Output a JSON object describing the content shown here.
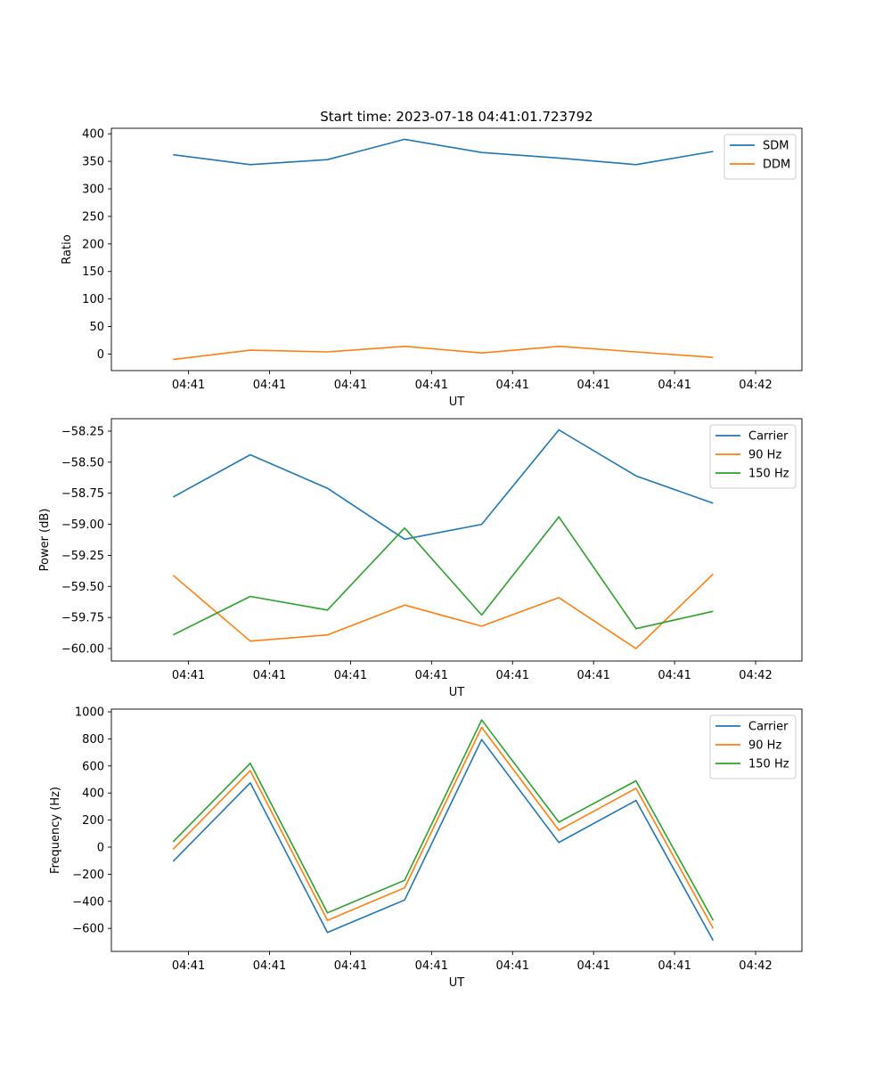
{
  "figure": {
    "title": "Start time: 2023-07-18 04:41:01.723792"
  },
  "chart_data": [
    {
      "type": "line",
      "title": "Start time: 2023-07-18 04:41:01.723792",
      "xlabel": "UT",
      "ylabel": "Ratio",
      "x_tick_labels": [
        "04:41",
        "04:41",
        "04:41",
        "04:41",
        "04:41",
        "04:41",
        "04:41"
      ],
      "x_last_tick_label": "04:42",
      "y_ticks": [
        0,
        50,
        100,
        150,
        200,
        250,
        300,
        350,
        400
      ],
      "y_tick_labels": [
        "0",
        "50",
        "100",
        "150",
        "200",
        "250",
        "300",
        "350",
        "400"
      ],
      "ylim": [
        -30,
        410
      ],
      "x": [
        1,
        2,
        3,
        4,
        5,
        6,
        7,
        8
      ],
      "xlim": [
        0.2,
        9.15
      ],
      "legend_position": "top-right",
      "series": [
        {
          "name": "SDM",
          "color": "#1f77b4",
          "values": [
            362,
            344,
            353,
            390,
            366,
            356,
            344,
            368
          ]
        },
        {
          "name": "DDM",
          "color": "#ff7f0e",
          "values": [
            -10,
            7,
            4,
            14,
            2,
            14,
            4,
            -6
          ]
        }
      ]
    },
    {
      "type": "line",
      "xlabel": "UT",
      "ylabel": "Power (dB)",
      "x_tick_labels": [
        "04:41",
        "04:41",
        "04:41",
        "04:41",
        "04:41",
        "04:41",
        "04:41"
      ],
      "x_last_tick_label": "04:42",
      "y_ticks": [
        -60.0,
        -59.75,
        -59.5,
        -59.25,
        -59.0,
        -58.75,
        -58.5,
        -58.25
      ],
      "y_tick_labels": [
        "−60.00",
        "−59.75",
        "−59.50",
        "−59.25",
        "−59.00",
        "−58.75",
        "−58.50",
        "−58.25"
      ],
      "ylim": [
        -60.1,
        -58.15
      ],
      "x": [
        1,
        2,
        3,
        4,
        5,
        6,
        7,
        8
      ],
      "xlim": [
        0.2,
        9.15
      ],
      "legend_position": "top-right",
      "series": [
        {
          "name": "Carrier",
          "color": "#1f77b4",
          "values": [
            -58.78,
            -58.44,
            -58.71,
            -59.12,
            -59.0,
            -58.24,
            -58.61,
            -58.83
          ]
        },
        {
          "name": "90 Hz",
          "color": "#ff7f0e",
          "values": [
            -59.41,
            -59.94,
            -59.89,
            -59.65,
            -59.82,
            -59.59,
            -60.0,
            -59.4
          ]
        },
        {
          "name": "150 Hz",
          "color": "#2ca02c",
          "values": [
            -59.89,
            -59.58,
            -59.69,
            -59.03,
            -59.73,
            -58.94,
            -59.84,
            -59.7
          ]
        }
      ]
    },
    {
      "type": "line",
      "xlabel": "UT",
      "ylabel": "Frequency (Hz)",
      "x_tick_labels": [
        "04:41",
        "04:41",
        "04:41",
        "04:41",
        "04:41",
        "04:41",
        "04:41"
      ],
      "x_last_tick_label": "04:42",
      "y_ticks": [
        -600,
        -400,
        -200,
        0,
        200,
        400,
        600,
        800,
        1000
      ],
      "y_tick_labels": [
        "−600",
        "−400",
        "−200",
        "0",
        "200",
        "400",
        "600",
        "800",
        "1000"
      ],
      "ylim": [
        -770,
        1020
      ],
      "x": [
        1,
        2,
        3,
        4,
        5,
        6,
        7,
        8
      ],
      "xlim": [
        0.2,
        9.15
      ],
      "legend_position": "top-right",
      "series": [
        {
          "name": "Carrier",
          "color": "#1f77b4",
          "values": [
            -105,
            475,
            -630,
            -390,
            795,
            35,
            345,
            -690
          ]
        },
        {
          "name": "90 Hz",
          "color": "#ff7f0e",
          "values": [
            -15,
            565,
            -540,
            -300,
            885,
            125,
            435,
            -600
          ]
        },
        {
          "name": "150 Hz",
          "color": "#2ca02c",
          "values": [
            40,
            620,
            -485,
            -245,
            940,
            185,
            490,
            -540
          ]
        }
      ]
    }
  ]
}
